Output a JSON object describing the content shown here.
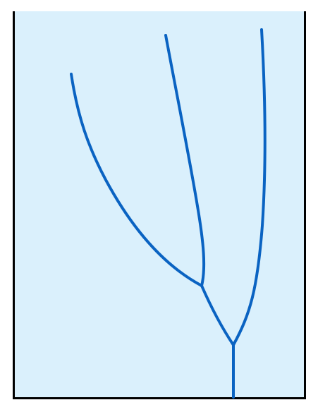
{
  "diagram": {
    "type": "branching-tree",
    "description_visible_text": "",
    "colors": {
      "background": "#daf0fc",
      "border": "#000000",
      "branch": "#0a63c2",
      "page": "#ffffff"
    },
    "branch_count": 3,
    "node_count": 2
  }
}
